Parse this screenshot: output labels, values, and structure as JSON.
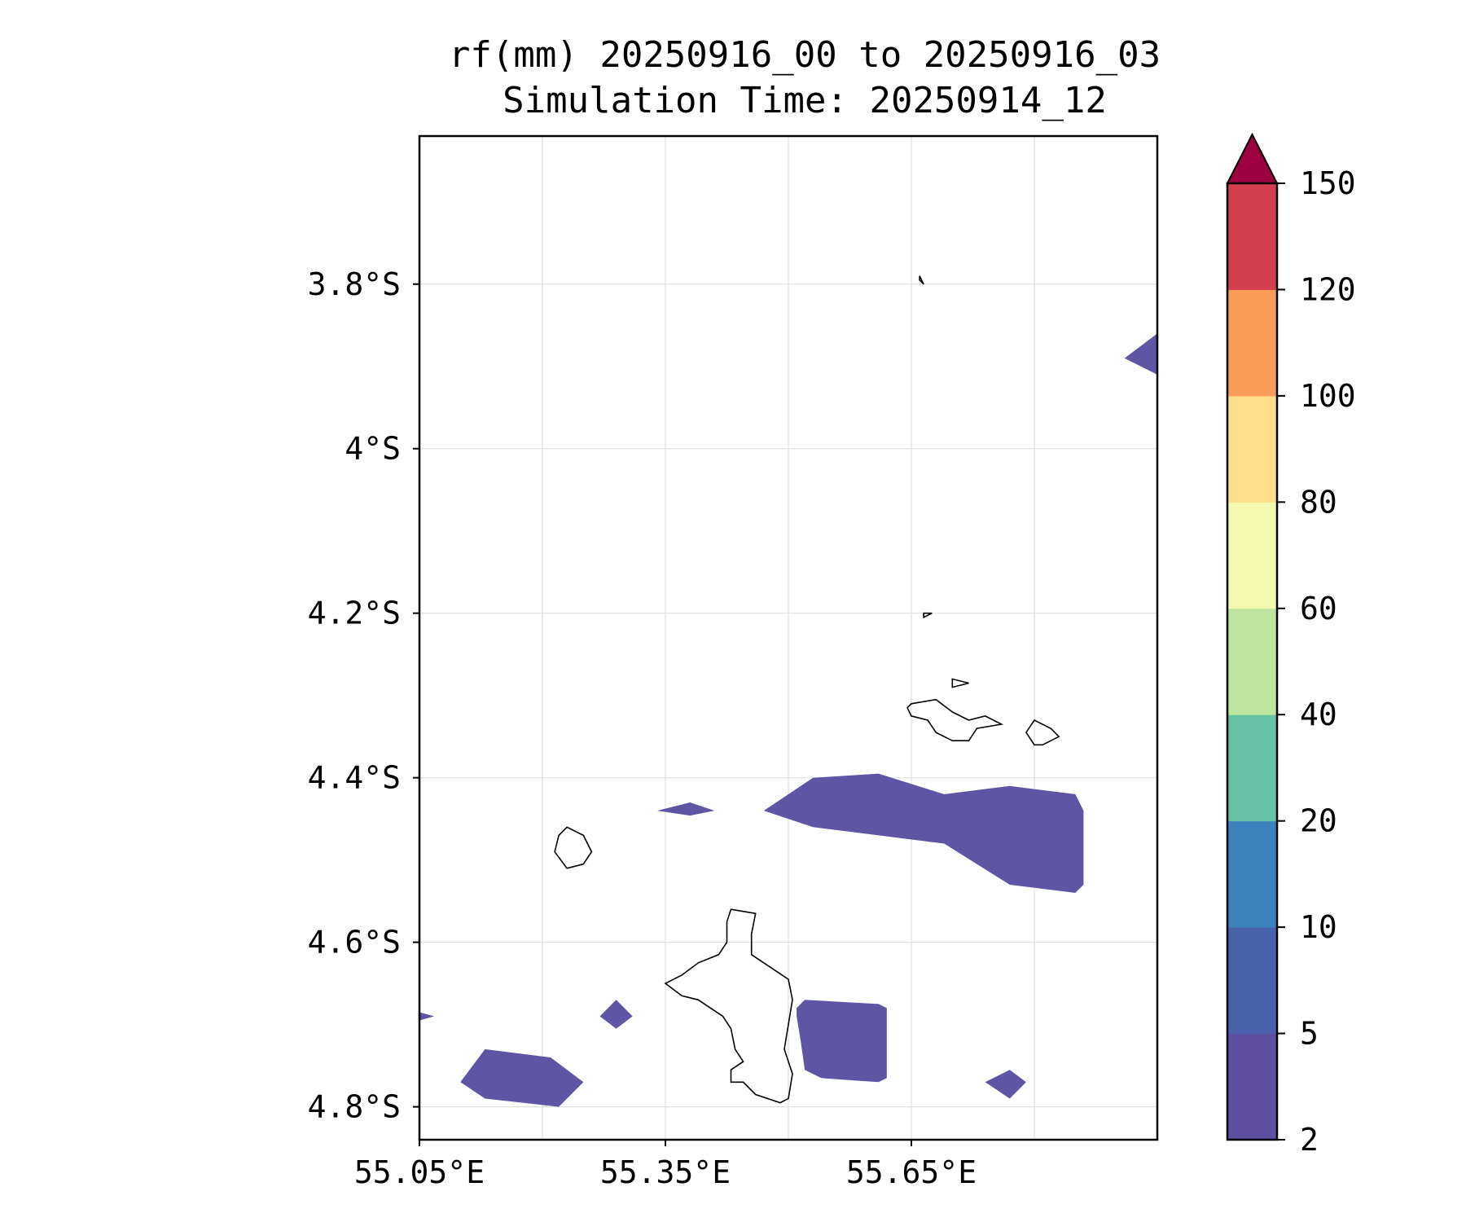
{
  "title_line1": "rf(mm) 20250916_00 to 20250916_03",
  "title_line2": "Simulation Time: 20250914_12",
  "map": {
    "lon_range": [
      55.05,
      55.95
    ],
    "lat_range": [
      -4.84,
      -3.62
    ],
    "lat_ticks": [
      {
        "value": -3.8,
        "label": "3.8°S"
      },
      {
        "value": -4.0,
        "label": "4°S"
      },
      {
        "value": -4.2,
        "label": "4.2°S"
      },
      {
        "value": -4.4,
        "label": "4.4°S"
      },
      {
        "value": -4.6,
        "label": "4.6°S"
      },
      {
        "value": -4.8,
        "label": "4.8°S"
      }
    ],
    "lon_ticks": [
      {
        "value": 55.05,
        "label": "55.05°E"
      },
      {
        "value": 55.35,
        "label": "55.35°E"
      },
      {
        "value": 55.65,
        "label": "55.65°E"
      }
    ],
    "lon_gridlines": [
      55.2,
      55.35,
      55.5,
      55.65,
      55.8
    ],
    "rain_color": "#5e55a5",
    "coast_color": "#000000",
    "rain_regions": [
      {
        "name": "rain-region-northeast",
        "lonlat": [
          [
            55.95,
            -3.86
          ],
          [
            55.91,
            -3.89
          ],
          [
            55.95,
            -3.91
          ]
        ]
      },
      {
        "name": "rain-region-central-band",
        "lonlat": [
          [
            55.47,
            -4.44
          ],
          [
            55.53,
            -4.4
          ],
          [
            55.61,
            -4.395
          ],
          [
            55.69,
            -4.42
          ],
          [
            55.77,
            -4.41
          ],
          [
            55.85,
            -4.42
          ],
          [
            55.86,
            -4.44
          ],
          [
            55.86,
            -4.53
          ],
          [
            55.85,
            -4.54
          ],
          [
            55.77,
            -4.53
          ],
          [
            55.69,
            -4.48
          ],
          [
            55.61,
            -4.47
          ],
          [
            55.53,
            -4.46
          ]
        ]
      },
      {
        "name": "rain-region-small-north",
        "lonlat": [
          [
            55.34,
            -4.44
          ],
          [
            55.38,
            -4.43
          ],
          [
            55.41,
            -4.44
          ],
          [
            55.38,
            -4.446
          ]
        ]
      },
      {
        "name": "rain-region-southwest",
        "lonlat": [
          [
            55.1,
            -4.77
          ],
          [
            55.13,
            -4.73
          ],
          [
            55.21,
            -4.74
          ],
          [
            55.25,
            -4.77
          ],
          [
            55.22,
            -4.8
          ],
          [
            55.13,
            -4.79
          ]
        ]
      },
      {
        "name": "rain-region-west-edge",
        "lonlat": [
          [
            55.05,
            -4.685
          ],
          [
            55.068,
            -4.69
          ],
          [
            55.05,
            -4.695
          ]
        ]
      },
      {
        "name": "rain-region-small-diamond",
        "lonlat": [
          [
            55.27,
            -4.69
          ],
          [
            55.29,
            -4.67
          ],
          [
            55.31,
            -4.69
          ],
          [
            55.29,
            -4.705
          ]
        ]
      },
      {
        "name": "rain-region-south-central",
        "lonlat": [
          [
            55.51,
            -4.68
          ],
          [
            55.52,
            -4.67
          ],
          [
            55.61,
            -4.675
          ],
          [
            55.62,
            -4.68
          ],
          [
            55.62,
            -4.765
          ],
          [
            55.61,
            -4.77
          ],
          [
            55.58,
            -4.768
          ],
          [
            55.54,
            -4.765
          ],
          [
            55.52,
            -4.755
          ],
          [
            55.515,
            -4.72
          ],
          [
            55.51,
            -4.69
          ]
        ]
      },
      {
        "name": "rain-region-southeast-diamond",
        "lonlat": [
          [
            55.74,
            -4.77
          ],
          [
            55.77,
            -4.755
          ],
          [
            55.79,
            -4.77
          ],
          [
            55.77,
            -4.79
          ]
        ]
      }
    ],
    "islands": [
      {
        "name": "island-mahe",
        "lonlat": [
          [
            55.43,
            -4.56
          ],
          [
            55.46,
            -4.565
          ],
          [
            55.455,
            -4.59
          ],
          [
            55.455,
            -4.615
          ],
          [
            55.47,
            -4.625
          ],
          [
            55.5,
            -4.645
          ],
          [
            55.505,
            -4.67
          ],
          [
            55.5,
            -4.7
          ],
          [
            55.495,
            -4.73
          ],
          [
            55.505,
            -4.76
          ],
          [
            55.5,
            -4.79
          ],
          [
            55.49,
            -4.795
          ],
          [
            55.46,
            -4.785
          ],
          [
            55.445,
            -4.77
          ],
          [
            55.43,
            -4.77
          ],
          [
            55.43,
            -4.755
          ],
          [
            55.445,
            -4.745
          ],
          [
            55.435,
            -4.73
          ],
          [
            55.43,
            -4.705
          ],
          [
            55.42,
            -4.69
          ],
          [
            55.39,
            -4.67
          ],
          [
            55.37,
            -4.665
          ],
          [
            55.35,
            -4.65
          ],
          [
            55.37,
            -4.64
          ],
          [
            55.39,
            -4.625
          ],
          [
            55.415,
            -4.615
          ],
          [
            55.425,
            -4.6
          ],
          [
            55.425,
            -4.575
          ]
        ]
      },
      {
        "name": "island-silhouette",
        "lonlat": [
          [
            55.22,
            -4.47
          ],
          [
            55.23,
            -4.46
          ],
          [
            55.25,
            -4.47
          ],
          [
            55.26,
            -4.49
          ],
          [
            55.25,
            -4.505
          ],
          [
            55.23,
            -4.51
          ],
          [
            55.215,
            -4.49
          ]
        ]
      },
      {
        "name": "island-praslin",
        "lonlat": [
          [
            55.65,
            -4.31
          ],
          [
            55.68,
            -4.305
          ],
          [
            55.7,
            -4.32
          ],
          [
            55.72,
            -4.33
          ],
          [
            55.74,
            -4.325
          ],
          [
            55.76,
            -4.335
          ],
          [
            55.73,
            -4.34
          ],
          [
            55.72,
            -4.355
          ],
          [
            55.7,
            -4.355
          ],
          [
            55.68,
            -4.345
          ],
          [
            55.67,
            -4.33
          ],
          [
            55.65,
            -4.325
          ],
          [
            55.645,
            -4.315
          ]
        ]
      },
      {
        "name": "island-la-digue",
        "lonlat": [
          [
            55.82,
            -4.34
          ],
          [
            55.83,
            -4.35
          ],
          [
            55.81,
            -4.36
          ],
          [
            55.8,
            -4.36
          ],
          [
            55.79,
            -4.345
          ],
          [
            55.8,
            -4.33
          ]
        ]
      },
      {
        "name": "island-denis",
        "lonlat": [
          [
            55.66,
            -3.79
          ],
          [
            55.665,
            -3.8
          ],
          [
            55.66,
            -3.795
          ]
        ]
      },
      {
        "name": "island-bird",
        "lonlat": [
          [
            55.665,
            -4.2
          ],
          [
            55.675,
            -4.2
          ],
          [
            55.665,
            -4.205
          ]
        ]
      },
      {
        "name": "island-curieuse",
        "lonlat": [
          [
            55.7,
            -4.28
          ],
          [
            55.72,
            -4.285
          ],
          [
            55.7,
            -4.29
          ],
          [
            55.7,
            -4.28
          ]
        ]
      }
    ]
  },
  "colorbar": {
    "bins": [
      {
        "from": "2",
        "to": "5",
        "color": "#5e4fa2"
      },
      {
        "from": "5",
        "to": "10",
        "color": "#4a62ae"
      },
      {
        "from": "10",
        "to": "20",
        "color": "#3a82bd"
      },
      {
        "from": "20",
        "to": "40",
        "color": "#66c2a5"
      },
      {
        "from": "40",
        "to": "60",
        "color": "#bde5a0"
      },
      {
        "from": "60",
        "to": "80",
        "color": "#f3faaf"
      },
      {
        "from": "80",
        "to": "100",
        "color": "#fddf8b"
      },
      {
        "from": "100",
        "to": "120",
        "color": "#f99c57"
      },
      {
        "from": "120",
        "to": "150",
        "color": "#d53e4f"
      }
    ],
    "extend_color": "#9e0142",
    "tick_labels": [
      "2",
      "5",
      "10",
      "20",
      "40",
      "60",
      "80",
      "100",
      "120",
      "150"
    ]
  }
}
